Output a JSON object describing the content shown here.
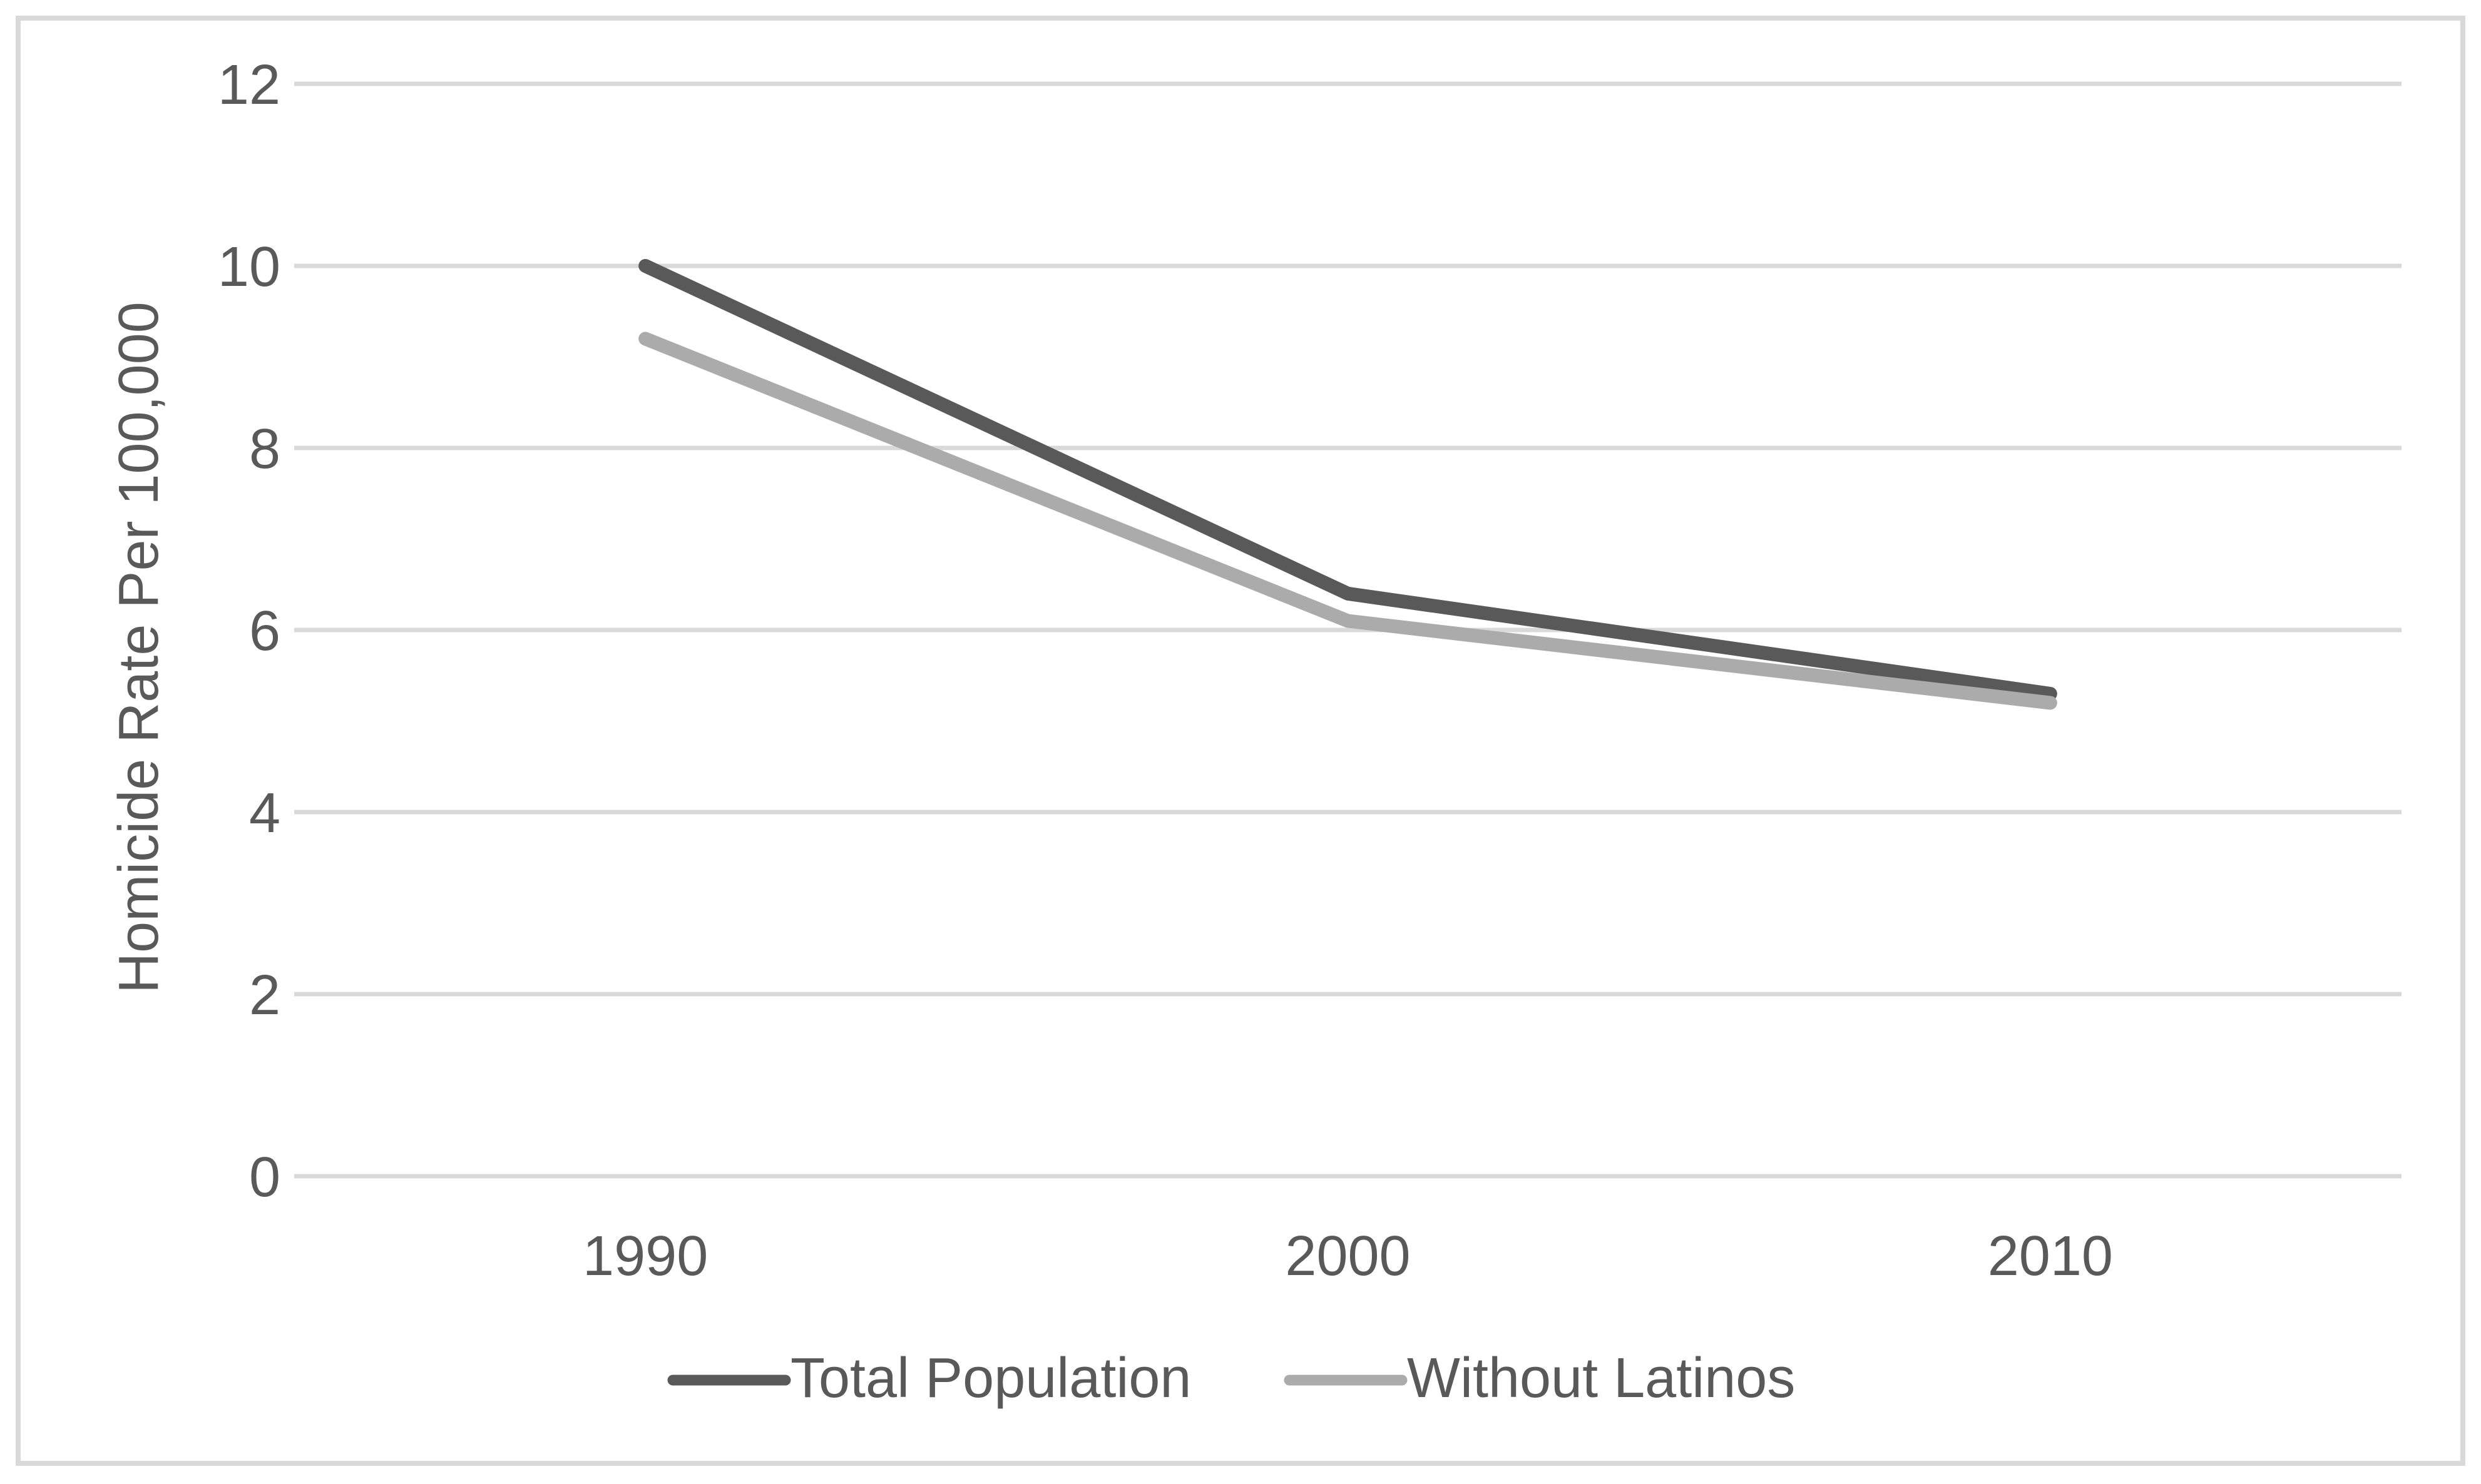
{
  "chart_data": {
    "type": "line",
    "categories": [
      "1990",
      "2000",
      "2010"
    ],
    "series": [
      {
        "name": "Total Population",
        "values": [
          10.0,
          6.4,
          5.3
        ],
        "color": "#595959"
      },
      {
        "name": "Without Latinos",
        "values": [
          9.2,
          6.1,
          5.2
        ],
        "color": "#ABABAB"
      }
    ],
    "title": "",
    "xlabel": "",
    "ylabel": "Homicide Rate Per 100,000",
    "ylim": [
      0,
      12
    ],
    "ytick_step": 2,
    "y_ticks": [
      "0",
      "2",
      "4",
      "6",
      "8",
      "10",
      "12"
    ],
    "grid": "horizontal-only",
    "legend_position": "bottom-center",
    "colors": {
      "grid_line": "#D9D9D9",
      "chart_border": "#D9D9D9",
      "axis_text": "#595959",
      "background": "#FFFFFF"
    }
  }
}
